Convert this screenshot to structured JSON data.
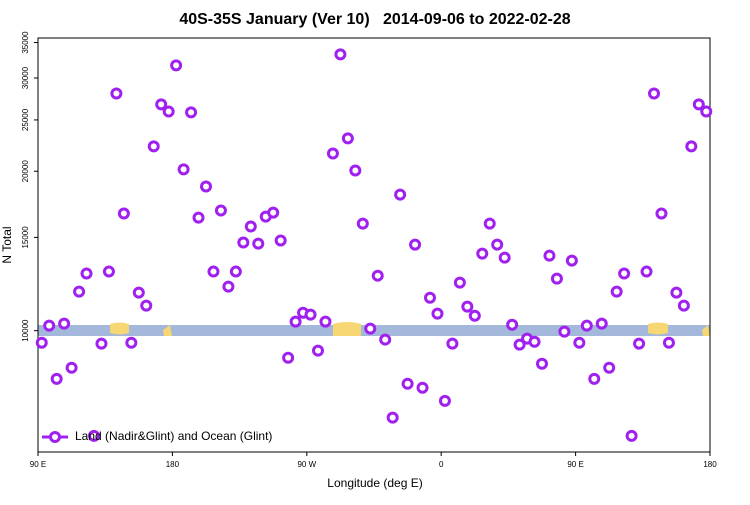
{
  "chart_data": {
    "type": "scatter",
    "title": "40S-35S January (Ver 10)   2014-09-06 to 2022-02-28",
    "xlabel": "Longitude (deg E)",
    "ylabel": "N Total",
    "yscale": "log",
    "legend": "lower left",
    "xlim": [
      90,
      540
    ],
    "ylim": [
      5900,
      35700
    ],
    "xticks": [
      {
        "value": 90,
        "label": "90 E"
      },
      180,
      {
        "value": 270,
        "label": "90 W"
      },
      {
        "value": 360,
        "label": "0"
      },
      {
        "value": 450,
        "label": "90 E"
      },
      {
        "value": 540,
        "label": "180"
      }
    ],
    "yticks": [
      10000,
      15000,
      20000,
      25000,
      30000,
      35000
    ],
    "series": [
      {
        "name": "Land (Nadir&Glint) and Ocean (Glint)",
        "color": "#a020f0",
        "x": [
          92.5,
          97.5,
          102.5,
          107.5,
          112.5,
          117.5,
          122.5,
          127.5,
          132.5,
          137.5,
          142.5,
          147.5,
          152.5,
          157.5,
          162.5,
          167.5,
          172.5,
          177.5,
          182.5,
          187.5,
          192.5,
          197.5,
          202.5,
          207.5,
          212.5,
          217.5,
          222.5,
          227.5,
          232.5,
          237.5,
          242.5,
          247.5,
          252.5,
          257.5,
          262.5,
          267.5,
          272.5,
          277.5,
          282.5,
          287.5,
          292.5,
          297.5,
          302.5,
          307.5,
          312.5,
          317.5,
          322.5,
          327.5,
          332.5,
          337.5,
          342.5,
          347.5,
          352.5,
          357.5,
          362.5,
          367.5,
          372.5,
          377.5,
          382.5,
          387.5,
          392.5,
          397.5,
          402.5,
          407.5,
          412.5,
          417.5,
          422.5,
          427.5,
          432.5,
          437.5,
          442.5,
          447.5,
          452.5,
          457.5,
          462.5,
          467.5,
          472.5,
          477.5,
          482.5,
          487.5,
          492.5,
          497.5,
          502.5,
          507.5,
          512.5,
          517.5,
          522.5,
          527.5,
          532.5,
          537.5
        ],
        "values": [
          9490,
          10220,
          8110,
          10310,
          8510,
          11850,
          12820,
          6330,
          9450,
          12930,
          28050,
          16640,
          9490,
          11800,
          11150,
          22280,
          26750,
          25940,
          31700,
          20160,
          25830,
          16350,
          18720,
          12930,
          16860,
          12110,
          12930,
          14670,
          15730,
          14600,
          16420,
          16710,
          14800,
          8890,
          10400,
          10810,
          10720,
          9170,
          10400,
          21610,
          33240,
          23070,
          20070,
          15930,
          10090,
          12700,
          9620,
          6850,
          18070,
          7940,
          14540,
          7800,
          11540,
          10770,
          7370,
          9450,
          12320,
          11100,
          10670,
          13980,
          15930,
          14540,
          13740,
          10260,
          9410,
          9660,
          9530,
          8660,
          13860,
          12540,
          9960,
          13560,
          9490,
          10220,
          8110,
          10310,
          8510,
          11850,
          12820,
          6330,
          9450,
          12930,
          28050,
          16640,
          9490,
          11800,
          11150,
          22280,
          26750,
          25940
        ]
      }
    ]
  }
}
